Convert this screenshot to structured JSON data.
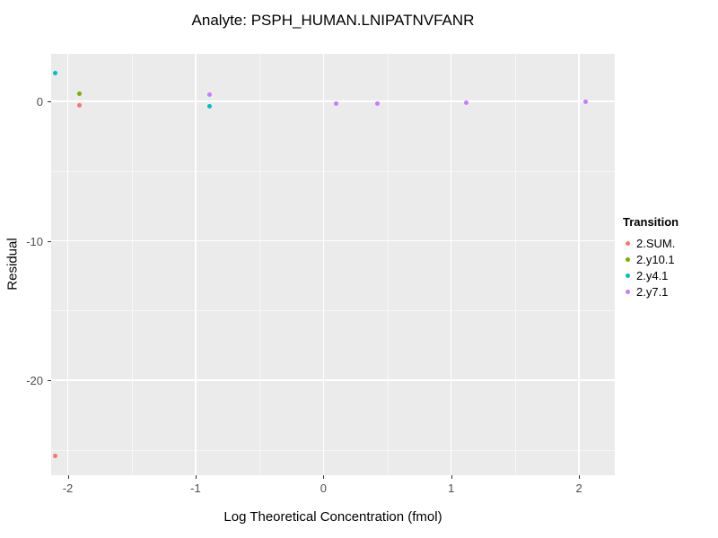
{
  "chart_data": {
    "type": "scatter",
    "title": "Analyte: PSPH_HUMAN.LNIPATNVFANR",
    "xlabel": "Log Theoretical Concentration (fmol)",
    "ylabel": "Residual",
    "legend_title": "Transition",
    "legend_position": "right",
    "panel_background": "#EBEBEB",
    "grid_color": "#FFFFFF",
    "xlim": [
      -2.13,
      2.28
    ],
    "ylim": [
      -26.8,
      3.4
    ],
    "x_major_ticks": [
      -2,
      -1,
      0,
      1,
      2
    ],
    "x_minor_ticks": [
      -1.5,
      -0.5,
      0.5,
      1.5
    ],
    "y_major_ticks": [
      0,
      -10,
      -20
    ],
    "y_minor_ticks": [
      -5,
      -15,
      -25
    ],
    "series": [
      {
        "name": "2.SUM.",
        "color": "#F8766D",
        "points": [
          [
            -1.91,
            -0.3
          ],
          [
            -2.1,
            -25.4
          ]
        ]
      },
      {
        "name": "2.y10.1",
        "color": "#7CAE00",
        "points": [
          [
            -1.91,
            0.55
          ]
        ]
      },
      {
        "name": "2.y4.1",
        "color": "#00BFC4",
        "points": [
          [
            -2.1,
            2.0
          ],
          [
            -0.89,
            -0.35
          ]
        ]
      },
      {
        "name": "2.y7.1",
        "color": "#C77CFF",
        "points": [
          [
            -0.89,
            0.45
          ],
          [
            0.1,
            -0.15
          ],
          [
            0.42,
            -0.15
          ],
          [
            1.12,
            -0.1
          ],
          [
            2.05,
            -0.05
          ]
        ]
      }
    ]
  }
}
